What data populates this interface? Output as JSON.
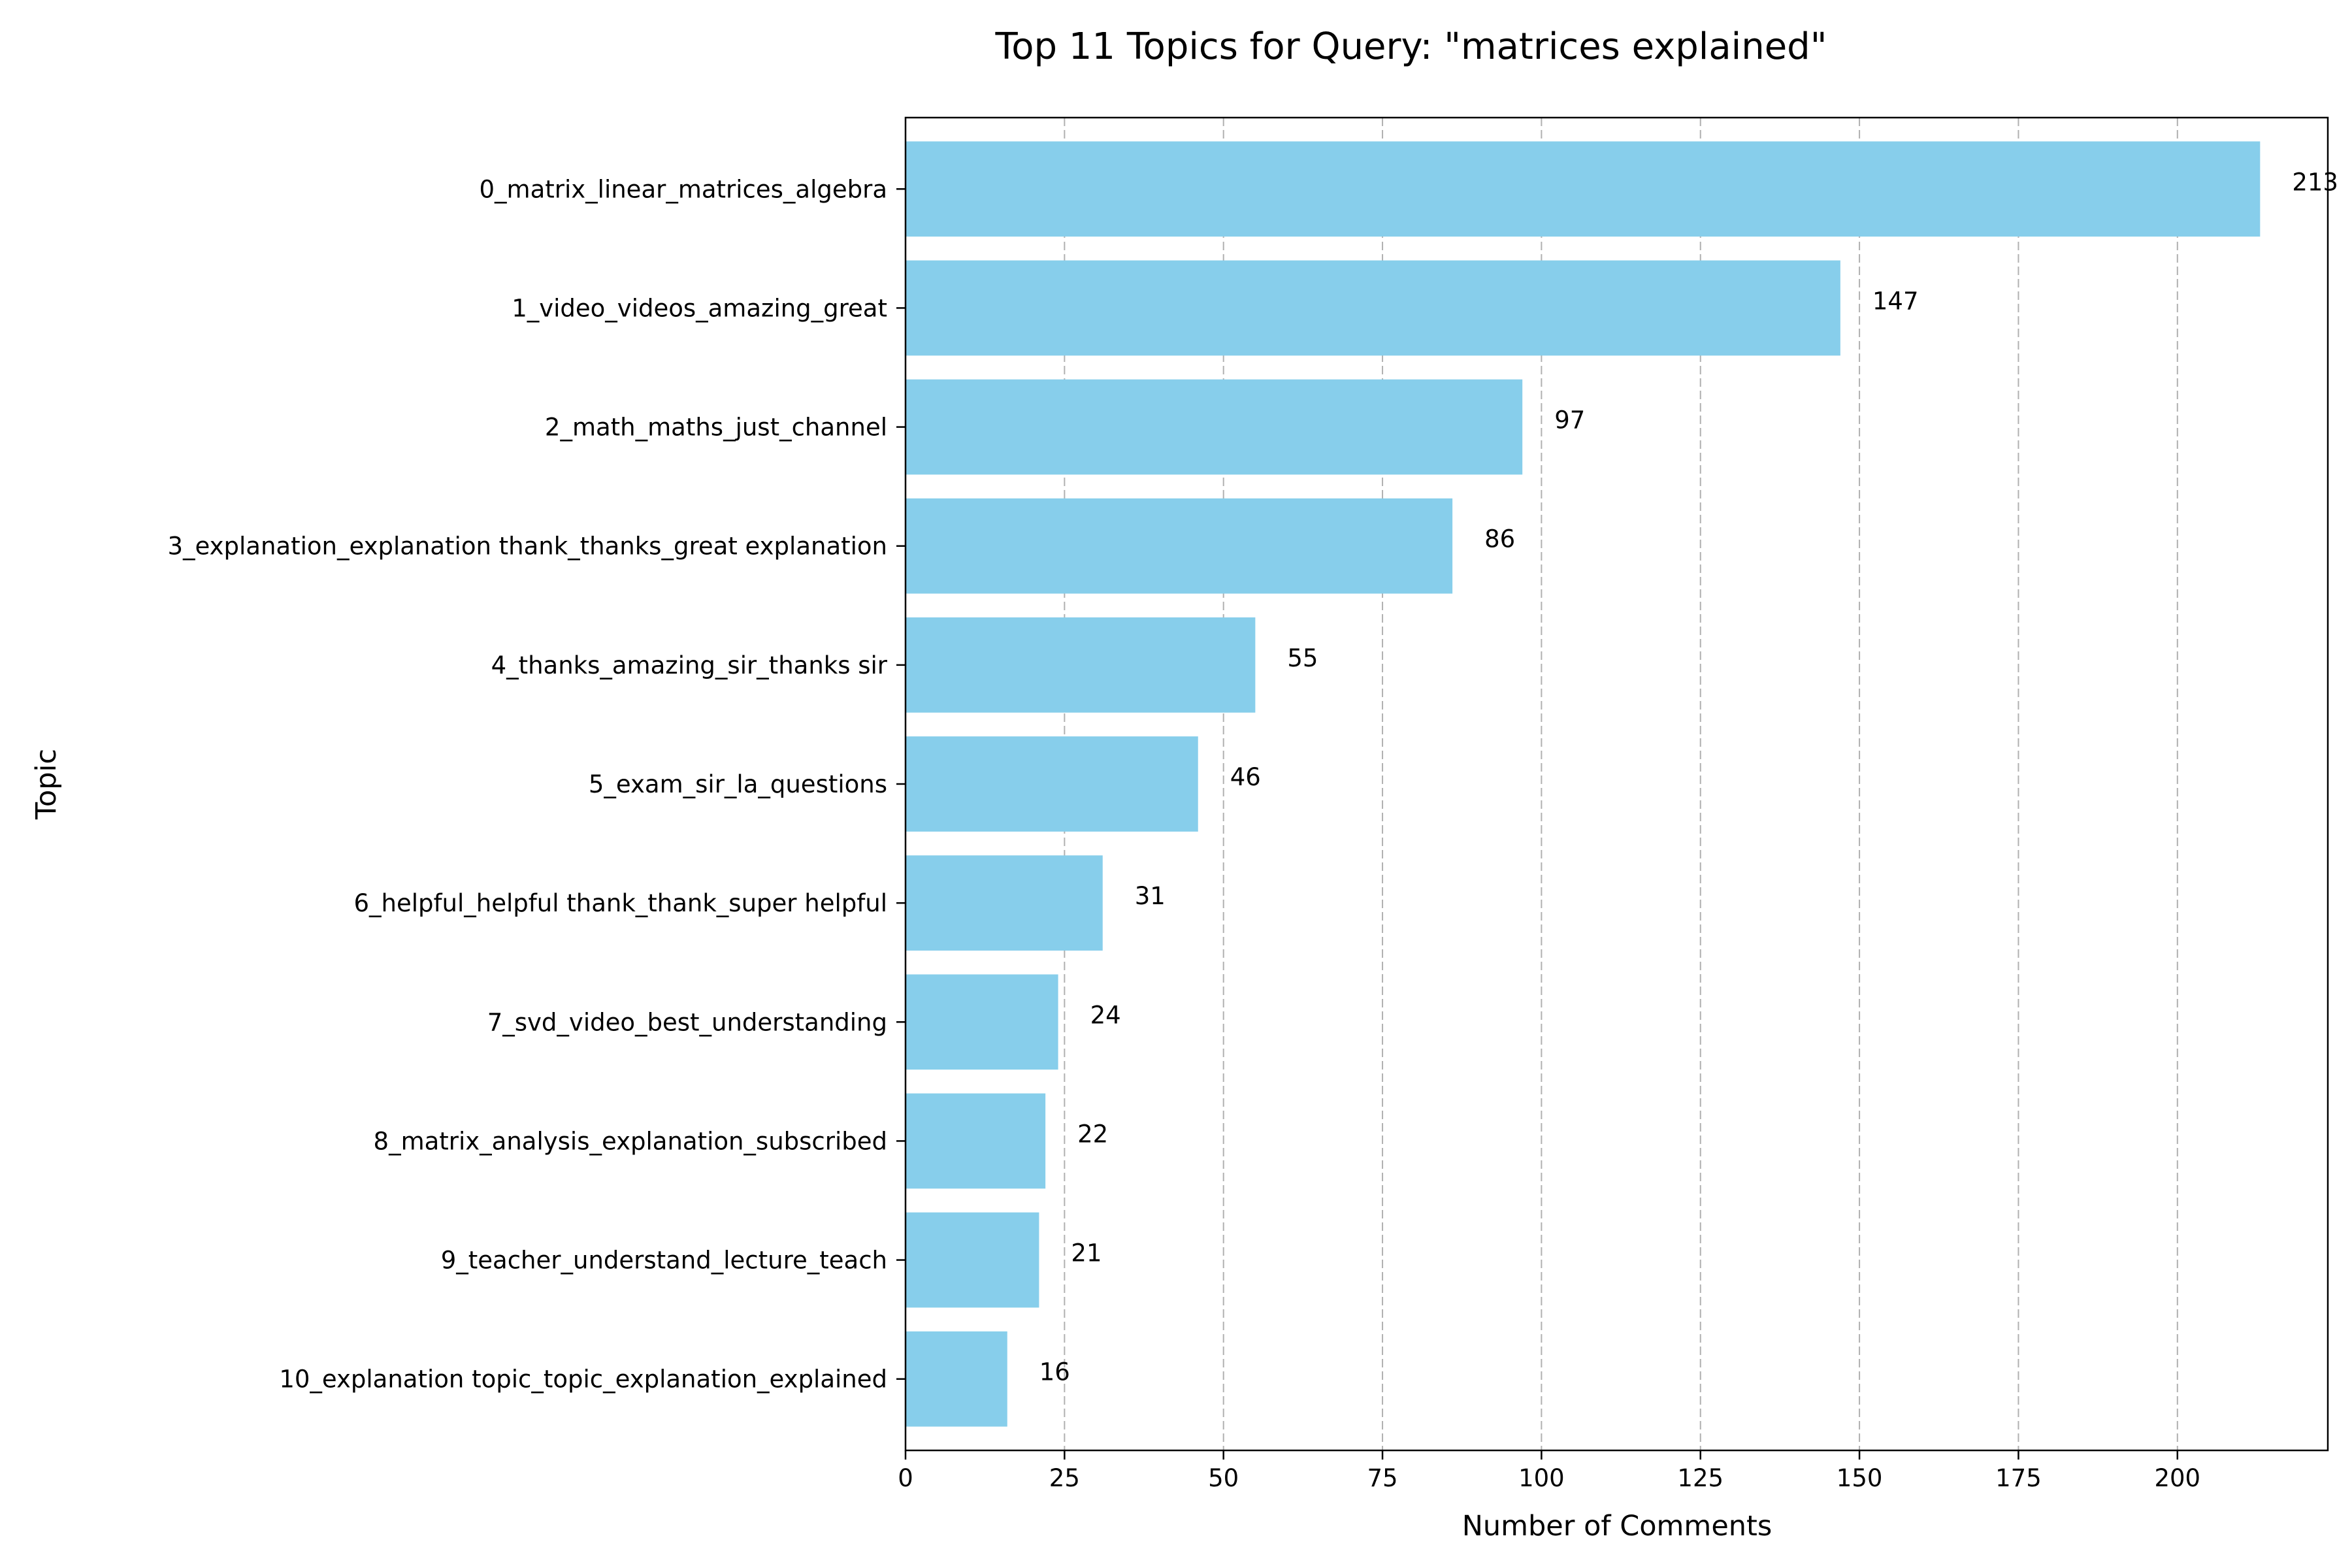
{
  "chart_data": {
    "type": "bar",
    "orientation": "horizontal",
    "title": "Top 11 Topics for Query: \"matrices explained\"",
    "xlabel": "Number of Comments",
    "ylabel": "Topic",
    "categories": [
      "0_matrix_linear_matrices_algebra",
      "1_video_videos_amazing_great",
      "2_math_maths_just_channel",
      "3_explanation_explanation thank_thanks_great explanation",
      "4_thanks_amazing_sir_thanks sir",
      "5_exam_sir_la_questions",
      "6_helpful_helpful thank_thank_super helpful",
      "7_svd_video_best_understanding",
      "8_matrix_analysis_explanation_subscribed",
      "9_teacher_understand_lecture_teach",
      "10_explanation topic_topic_explanation_explained"
    ],
    "values": [
      213,
      147,
      97,
      86,
      55,
      46,
      31,
      24,
      22,
      21,
      16
    ],
    "xlim": [
      0,
      223.65
    ],
    "xticks": [
      0,
      25,
      50,
      75,
      100,
      125,
      150,
      175,
      200
    ],
    "grid": "x-dashed",
    "bar_color": "#87ceeb"
  }
}
